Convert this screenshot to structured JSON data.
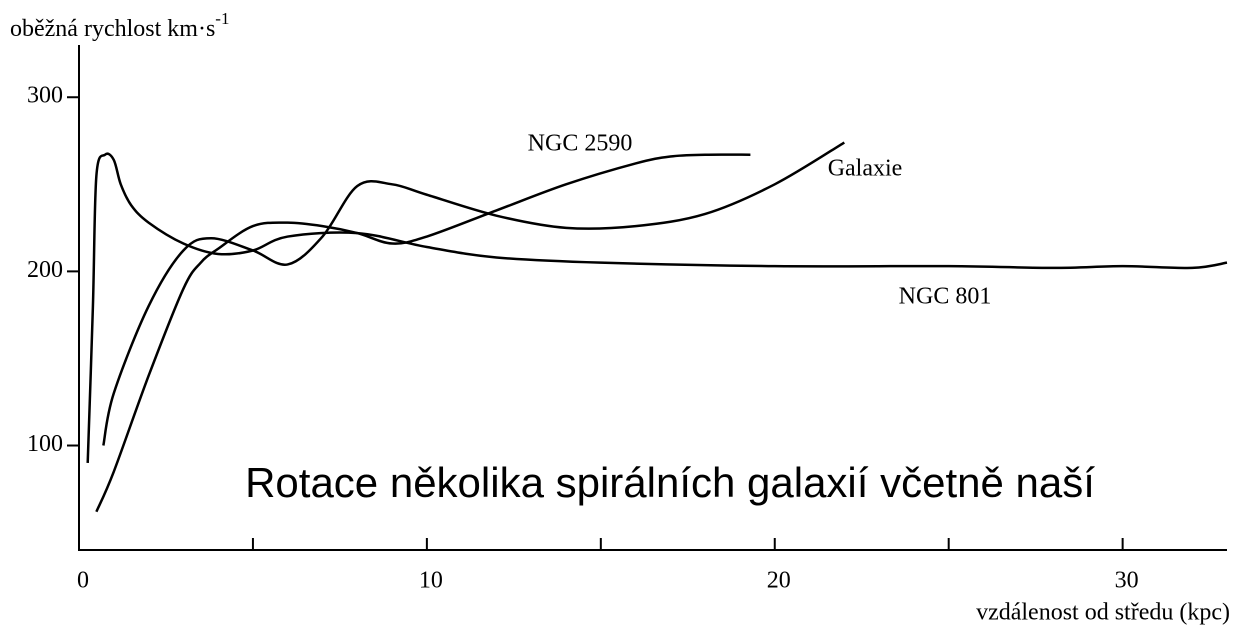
{
  "chart_data": {
    "type": "line",
    "title": "Rotace několika spirálních galaxií včetně naší",
    "ylabel": "oběžná rychlost km·s",
    "ylabel_superscript": "-1",
    "xlabel": "vzdálenost od středu (kpc)",
    "xlim": [
      0,
      33
    ],
    "ylim": [
      40,
      330
    ],
    "xticks": [
      0,
      10,
      20,
      30
    ],
    "xminor_ticks": [
      5,
      15,
      25
    ],
    "yticks": [
      100,
      200,
      300
    ],
    "color": "#000000",
    "series": [
      {
        "name": "NGC 2590",
        "x": [
          0.5,
          1,
          2,
          3,
          3.5,
          4,
          5,
          6,
          7,
          8,
          9,
          10,
          12,
          14,
          16,
          17,
          18,
          19.3
        ],
        "values": [
          62,
          85,
          140,
          190,
          205,
          213,
          226,
          228,
          226,
          222,
          216,
          220,
          235,
          250,
          262,
          266,
          267,
          267
        ]
      },
      {
        "name": "Galaxie",
        "x": [
          0.7,
          1,
          2,
          3,
          3.8,
          5,
          6,
          7,
          8,
          9,
          10,
          12,
          14,
          16,
          18,
          20,
          22
        ],
        "values": [
          100,
          130,
          180,
          212,
          219,
          212,
          204,
          220,
          249,
          250,
          244,
          232,
          225,
          226,
          233,
          250,
          274
        ]
      },
      {
        "name": "NGC 801",
        "x": [
          0.25,
          0.4,
          0.5,
          0.75,
          1.0,
          1.2,
          1.5,
          2,
          3,
          4,
          5,
          6,
          8,
          10,
          12,
          15,
          20,
          25,
          28,
          30,
          32,
          33
        ],
        "values": [
          90,
          180,
          255,
          267,
          264,
          250,
          238,
          228,
          216,
          210,
          212,
          220,
          222,
          214,
          208,
          205,
          203,
          203,
          202,
          203,
          202,
          205
        ]
      }
    ]
  }
}
